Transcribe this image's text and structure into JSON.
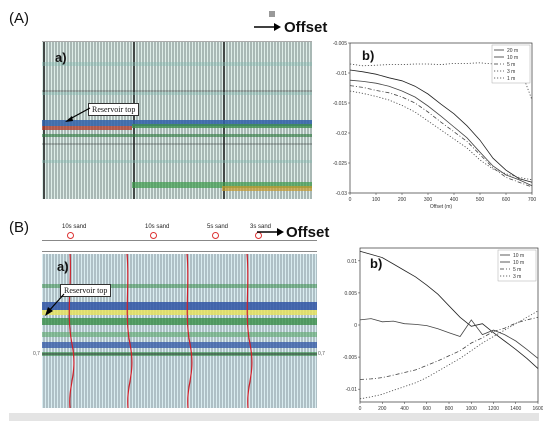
{
  "panel_a": {
    "label": "(A)",
    "seismic": {
      "label": "a)",
      "reservoir_label": "Reservoir top",
      "offset_label": "Offset"
    },
    "chart": {
      "label": "b)",
      "ylabel": "Amplitude",
      "xlabel": "Offset (m)",
      "legend": [
        "20 m",
        "10 m",
        "5 m",
        "3 m",
        "1 m"
      ]
    }
  },
  "panel_b": {
    "label": "(B)",
    "seismic": {
      "label": "a)",
      "reservoir_label": "Reservoir top",
      "offset_label": "Offset",
      "sand_labels": [
        "10s sand",
        "10s sand",
        "5s sand",
        "3s sand"
      ],
      "left_marker": "0,7",
      "right_marker": "0,7"
    },
    "chart": {
      "label": "b)",
      "ylabel": "Amplitude",
      "legend": [
        "10 m",
        "10 m",
        "5 m",
        "3 m"
      ]
    }
  },
  "chart_data": [
    {
      "type": "line",
      "title": "",
      "xlabel": "Offset (m)",
      "ylabel": "Amplitude",
      "xlim": [
        0,
        700
      ],
      "ylim": [
        -0.03,
        -0.005
      ],
      "x_ticks": [
        0,
        100,
        200,
        300,
        400,
        500,
        600,
        700
      ],
      "y_ticks": [
        "-0.005",
        "-0.01",
        "-0.015",
        "-0.02",
        "-0.025",
        "-0.03"
      ],
      "x": [
        0,
        50,
        100,
        150,
        200,
        250,
        300,
        350,
        400,
        450,
        500,
        550,
        600,
        650,
        700
      ],
      "series": [
        {
          "name": "20 m",
          "style": "solid",
          "values": [
            -0.0095,
            -0.0098,
            -0.0102,
            -0.0108,
            -0.0113,
            -0.0122,
            -0.0135,
            -0.0152,
            -0.0168,
            -0.0188,
            -0.0212,
            -0.0242,
            -0.0262,
            -0.0276,
            -0.0282
          ]
        },
        {
          "name": "10 m",
          "style": "solid",
          "values": [
            -0.0112,
            -0.0114,
            -0.0117,
            -0.0122,
            -0.013,
            -0.014,
            -0.0155,
            -0.0172,
            -0.019,
            -0.0208,
            -0.0232,
            -0.0255,
            -0.027,
            -0.0278,
            -0.0288
          ]
        },
        {
          "name": "5 m",
          "style": "dashdot",
          "values": [
            -0.0121,
            -0.0124,
            -0.0129,
            -0.0133,
            -0.014,
            -0.015,
            -0.0165,
            -0.0182,
            -0.0198,
            -0.0214,
            -0.0236,
            -0.0258,
            -0.0274,
            -0.0282,
            -0.029
          ]
        },
        {
          "name": "3 m",
          "style": "dotted",
          "values": [
            -0.013,
            -0.0134,
            -0.0139,
            -0.0145,
            -0.0154,
            -0.0165,
            -0.018,
            -0.0195,
            -0.021,
            -0.0225,
            -0.0245,
            -0.026,
            -0.0268,
            -0.0274,
            -0.0278
          ]
        },
        {
          "name": "1 m",
          "style": "dotted",
          "values": [
            -0.0085,
            -0.0088,
            -0.0087,
            -0.0086,
            -0.0086,
            -0.0085,
            -0.0085,
            -0.0086,
            -0.0084,
            -0.0084,
            -0.0083,
            -0.0085,
            -0.0082,
            -0.0087,
            -0.0145
          ]
        }
      ]
    },
    {
      "type": "line",
      "title": "",
      "xlabel": "",
      "ylabel": "Amplitude",
      "xlim": [
        0,
        1600
      ],
      "ylim": [
        -0.012,
        0.012
      ],
      "x_ticks": [
        0,
        200,
        400,
        600,
        800,
        1000,
        1200,
        1400,
        1600
      ],
      "y_ticks": [
        "0.01",
        "0.005",
        "0",
        "-0.005",
        "-0.01"
      ],
      "x": [
        0,
        100,
        200,
        300,
        400,
        500,
        600,
        700,
        800,
        900,
        1000,
        1100,
        1200,
        1300,
        1400,
        1500,
        1600
      ],
      "series": [
        {
          "name": "10 m",
          "style": "solid",
          "values": [
            0.0115,
            0.011,
            0.0105,
            0.0095,
            0.0085,
            0.0075,
            0.0062,
            0.0048,
            0.003,
            0.0012,
            -0.0002,
            0.0002,
            -0.0012,
            -0.0025,
            -0.0038,
            -0.0052,
            -0.0068
          ]
        },
        {
          "name": "10 m",
          "style": "solid",
          "values": [
            0.0008,
            0.001,
            0.0005,
            0.0006,
            0.0002,
            0.0001,
            -0.0001,
            -0.0006,
            -0.0012,
            -0.0018,
            0.0008,
            -0.0015,
            -0.0008,
            -0.0015,
            -0.0025,
            -0.0038,
            -0.0052
          ]
        },
        {
          "name": "5 m",
          "style": "dashdot",
          "values": [
            -0.0085,
            -0.0084,
            -0.0082,
            -0.0078,
            -0.0074,
            -0.007,
            -0.0063,
            -0.0056,
            -0.0048,
            -0.004,
            -0.0028,
            -0.002,
            -0.001,
            -0.0005,
            0.0003,
            0.0008,
            0.0012
          ]
        },
        {
          "name": "3 m",
          "style": "dotted",
          "values": [
            -0.0115,
            -0.0112,
            -0.0108,
            -0.0102,
            -0.0096,
            -0.009,
            -0.0082,
            -0.0072,
            -0.0062,
            -0.0052,
            -0.004,
            -0.0028,
            -0.0018,
            -0.0008,
            0.0002,
            0.0012,
            0.0022
          ]
        }
      ]
    }
  ]
}
